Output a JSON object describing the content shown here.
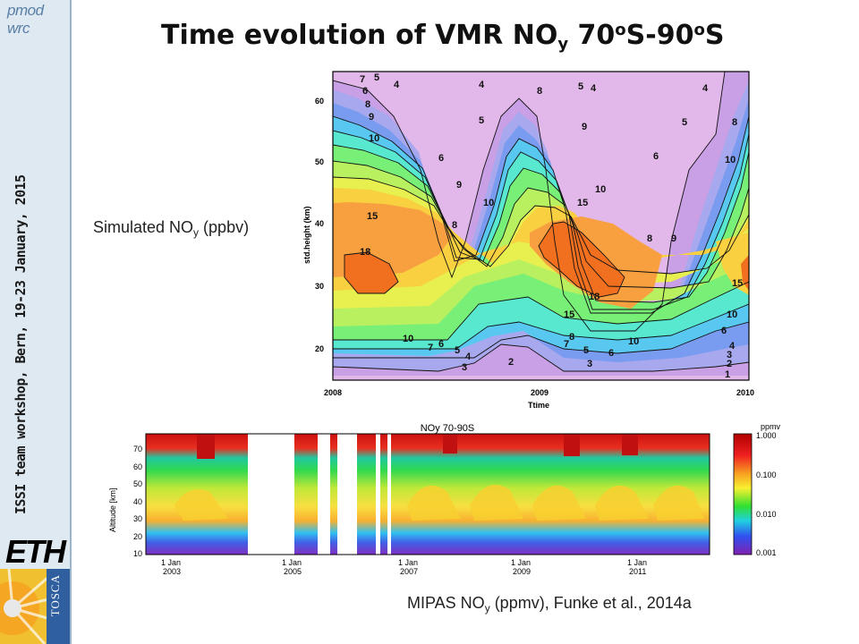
{
  "header": {
    "title_main": "Time evolution of VMR NO",
    "title_sub": "y",
    "title_lat1": " 70",
    "title_deg": "o",
    "title_mid": "S-90",
    "title_deg2": "o",
    "title_end": "S",
    "logo_text": "pmod wrc"
  },
  "sidebar": {
    "workshop_text": "ISSI team workshop, Bern, 19-23 January, 2015",
    "eth_logo": "ETH",
    "tosca_logo": "TOSCA"
  },
  "labels": {
    "simulated": "Simulated NO",
    "simulated_sub": "y",
    "simulated_unit": " (ppbv)",
    "mipas": "MIPAS NO",
    "mipas_sub": "y",
    "mipas_unit": " (ppmv), Funke et al., 2014a"
  },
  "chart_data": [
    {
      "type": "heatmap",
      "xlabel": "Ttime",
      "ylabel": "std.height (km)",
      "x_ticks": [
        "2008",
        "2009",
        "2010"
      ],
      "y_ticks": [
        20,
        30,
        40,
        50,
        60
      ],
      "ylim": [
        15,
        65
      ],
      "contour_labels": [
        "1",
        "2",
        "3",
        "4",
        "5",
        "6",
        "7",
        "8",
        "9",
        "10",
        "15",
        "18"
      ],
      "colors": [
        "#e2b8ea",
        "#c9a0e6",
        "#a8a8ee",
        "#7a9cf0",
        "#58c8f0",
        "#58e8d0",
        "#78f078",
        "#b8f060",
        "#e8f050",
        "#f8d040",
        "#f8a040",
        "#f07020"
      ]
    },
    {
      "type": "heatmap",
      "title": "NOy 70-90S",
      "ylabel": "Altitude [km]",
      "y_ticks": [
        10,
        20,
        30,
        40,
        50,
        60,
        70
      ],
      "x_ticks_top": [
        "1 Jan",
        "1 Jan",
        "1 Jan",
        "1 Jan",
        "1 Jan"
      ],
      "x_ticks_bottom": [
        "2003",
        "2005",
        "2007",
        "2009",
        "2011"
      ],
      "colorbar_title": "ppmv",
      "colorbar_ticks": [
        "1.000",
        "0.100",
        "0.010",
        "0.001"
      ]
    }
  ]
}
